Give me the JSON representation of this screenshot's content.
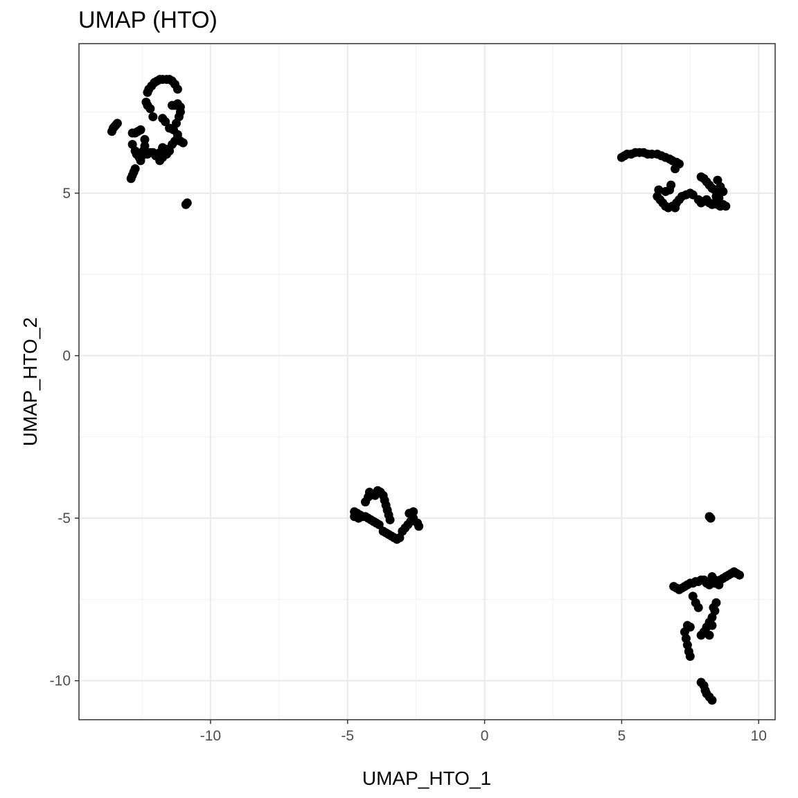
{
  "chart_data": {
    "type": "scatter",
    "title": "UMAP (HTO)",
    "xlabel": "UMAP_HTO_1",
    "ylabel": "UMAP_HTO_2",
    "xlim": [
      -14.8,
      10.6
    ],
    "ylim": [
      -11.2,
      9.6
    ],
    "x_ticks": [
      -10,
      -5,
      0,
      5,
      10
    ],
    "x_tick_labels": [
      "-10",
      "-5",
      "0",
      "5",
      "10"
    ],
    "y_ticks": [
      -10,
      -5,
      0,
      5
    ],
    "y_tick_labels": [
      "-10",
      "-5",
      "0",
      "5"
    ],
    "grid": true,
    "legend": "none",
    "point_color": "#000000",
    "series": [
      {
        "points": [
          [
            -13.6,
            6.9
          ],
          [
            -13.55,
            7.0
          ],
          [
            -13.5,
            7.05
          ],
          [
            -13.45,
            7.1
          ],
          [
            -13.4,
            7.15
          ],
          [
            -12.9,
            5.45
          ],
          [
            -12.85,
            5.55
          ],
          [
            -12.8,
            5.65
          ],
          [
            -12.75,
            5.75
          ],
          [
            -12.85,
            6.85
          ],
          [
            -12.75,
            6.85
          ],
          [
            -12.65,
            6.9
          ],
          [
            -12.55,
            6.95
          ],
          [
            -12.85,
            6.5
          ],
          [
            -12.75,
            6.3
          ],
          [
            -12.7,
            6.2
          ],
          [
            -12.6,
            6.1
          ],
          [
            -12.55,
            6.0
          ],
          [
            -12.5,
            6.15
          ],
          [
            -12.45,
            6.3
          ],
          [
            -12.4,
            6.45
          ],
          [
            -12.4,
            6.65
          ],
          [
            -12.3,
            6.2
          ],
          [
            -12.2,
            6.25
          ],
          [
            -12.1,
            6.25
          ],
          [
            -12.0,
            6.15
          ],
          [
            -11.85,
            6.25
          ],
          [
            -11.75,
            6.4
          ],
          [
            -11.6,
            6.35
          ],
          [
            -11.5,
            6.3
          ],
          [
            -11.4,
            6.5
          ],
          [
            -11.3,
            6.6
          ],
          [
            -11.2,
            6.7
          ],
          [
            -11.1,
            6.6
          ],
          [
            -11.0,
            6.55
          ],
          [
            -11.85,
            6.0
          ],
          [
            -11.75,
            6.1
          ],
          [
            -11.6,
            6.2
          ],
          [
            -12.35,
            7.8
          ],
          [
            -12.3,
            7.7
          ],
          [
            -12.2,
            7.6
          ],
          [
            -12.1,
            7.35
          ],
          [
            -12.3,
            8.1
          ],
          [
            -12.25,
            8.2
          ],
          [
            -12.15,
            8.3
          ],
          [
            -12.05,
            8.4
          ],
          [
            -11.95,
            8.45
          ],
          [
            -11.85,
            8.5
          ],
          [
            -11.75,
            8.5
          ],
          [
            -11.6,
            8.5
          ],
          [
            -11.5,
            8.5
          ],
          [
            -11.4,
            8.45
          ],
          [
            -11.3,
            8.35
          ],
          [
            -11.2,
            8.2
          ],
          [
            -11.4,
            7.7
          ],
          [
            -11.3,
            7.7
          ],
          [
            -11.2,
            7.75
          ],
          [
            -11.1,
            7.65
          ],
          [
            -11.1,
            7.5
          ],
          [
            -11.15,
            7.35
          ],
          [
            -11.25,
            7.15
          ],
          [
            -11.35,
            6.95
          ],
          [
            -11.2,
            6.8
          ],
          [
            -11.75,
            7.3
          ],
          [
            -11.65,
            7.2
          ],
          [
            -11.5,
            7.0
          ],
          [
            -10.9,
            4.65
          ],
          [
            -10.85,
            4.7
          ]
        ]
      },
      {
        "points": [
          [
            5.0,
            6.1
          ],
          [
            5.1,
            6.15
          ],
          [
            5.2,
            6.2
          ],
          [
            5.35,
            6.2
          ],
          [
            5.5,
            6.25
          ],
          [
            5.65,
            6.25
          ],
          [
            5.8,
            6.25
          ],
          [
            5.95,
            6.2
          ],
          [
            6.1,
            6.2
          ],
          [
            6.3,
            6.2
          ],
          [
            6.45,
            6.15
          ],
          [
            6.6,
            6.1
          ],
          [
            6.75,
            6.05
          ],
          [
            6.85,
            6.0
          ],
          [
            7.0,
            5.95
          ],
          [
            7.1,
            5.9
          ],
          [
            6.95,
            5.75
          ],
          [
            6.3,
            4.9
          ],
          [
            6.4,
            4.8
          ],
          [
            6.5,
            4.7
          ],
          [
            6.6,
            4.6
          ],
          [
            6.7,
            4.55
          ],
          [
            6.85,
            4.6
          ],
          [
            7.0,
            4.7
          ],
          [
            7.1,
            4.8
          ],
          [
            7.2,
            4.9
          ],
          [
            7.35,
            4.95
          ],
          [
            7.5,
            5.0
          ],
          [
            7.6,
            4.95
          ],
          [
            6.35,
            5.1
          ],
          [
            6.6,
            5.05
          ],
          [
            6.75,
            5.1
          ],
          [
            6.8,
            5.25
          ],
          [
            6.95,
            4.55
          ],
          [
            7.8,
            4.8
          ],
          [
            7.9,
            4.7
          ],
          [
            8.0,
            4.75
          ],
          [
            8.1,
            4.8
          ],
          [
            8.2,
            4.7
          ],
          [
            8.3,
            4.65
          ],
          [
            8.4,
            4.7
          ],
          [
            8.5,
            4.65
          ],
          [
            8.6,
            4.6
          ],
          [
            8.7,
            4.65
          ],
          [
            8.8,
            4.6
          ],
          [
            7.9,
            5.5
          ],
          [
            8.0,
            5.45
          ],
          [
            8.1,
            5.35
          ],
          [
            8.2,
            5.25
          ],
          [
            8.3,
            5.15
          ],
          [
            8.4,
            5.1
          ],
          [
            8.5,
            5.4
          ],
          [
            8.6,
            5.2
          ],
          [
            8.7,
            5.05
          ],
          [
            8.45,
            4.9
          ],
          [
            8.55,
            4.85
          ]
        ]
      },
      {
        "points": [
          [
            -4.75,
            -4.8
          ],
          [
            -4.65,
            -4.85
          ],
          [
            -4.55,
            -4.9
          ],
          [
            -4.45,
            -4.95
          ],
          [
            -4.35,
            -4.95
          ],
          [
            -4.25,
            -5.0
          ],
          [
            -4.15,
            -5.05
          ],
          [
            -4.05,
            -5.1
          ],
          [
            -3.95,
            -5.15
          ],
          [
            -3.85,
            -5.2
          ],
          [
            -4.75,
            -4.95
          ],
          [
            -4.6,
            -5.0
          ],
          [
            -4.35,
            -4.5
          ],
          [
            -4.25,
            -4.35
          ],
          [
            -4.2,
            -4.2
          ],
          [
            -4.0,
            -4.3
          ],
          [
            -3.9,
            -4.15
          ],
          [
            -3.8,
            -4.2
          ],
          [
            -3.7,
            -4.3
          ],
          [
            -3.65,
            -4.45
          ],
          [
            -3.6,
            -4.6
          ],
          [
            -3.55,
            -4.75
          ],
          [
            -3.5,
            -4.9
          ],
          [
            -3.45,
            -5.05
          ],
          [
            -3.7,
            -5.4
          ],
          [
            -3.6,
            -5.45
          ],
          [
            -3.5,
            -5.5
          ],
          [
            -3.4,
            -5.55
          ],
          [
            -3.3,
            -5.6
          ],
          [
            -3.2,
            -5.65
          ],
          [
            -3.1,
            -5.6
          ],
          [
            -3.0,
            -5.4
          ],
          [
            -2.9,
            -5.3
          ],
          [
            -2.8,
            -5.2
          ],
          [
            -2.7,
            -5.1
          ],
          [
            -2.6,
            -5.0
          ],
          [
            -2.75,
            -4.85
          ],
          [
            -2.6,
            -4.8
          ],
          [
            -2.45,
            -5.15
          ],
          [
            -2.4,
            -5.25
          ]
        ]
      },
      {
        "points": [
          [
            8.2,
            -4.95
          ],
          [
            8.25,
            -5.0
          ],
          [
            6.9,
            -7.1
          ],
          [
            7.0,
            -7.15
          ],
          [
            7.1,
            -7.2
          ],
          [
            7.2,
            -7.15
          ],
          [
            7.3,
            -7.1
          ],
          [
            7.4,
            -7.05
          ],
          [
            7.5,
            -7.0
          ],
          [
            7.6,
            -7.0
          ],
          [
            7.7,
            -6.95
          ],
          [
            7.8,
            -6.95
          ],
          [
            7.9,
            -6.9
          ],
          [
            8.0,
            -6.9
          ],
          [
            8.1,
            -7.0
          ],
          [
            8.2,
            -7.05
          ],
          [
            8.3,
            -6.95
          ],
          [
            8.4,
            -7.0
          ],
          [
            8.5,
            -6.95
          ],
          [
            8.6,
            -6.9
          ],
          [
            8.7,
            -6.85
          ],
          [
            8.8,
            -6.8
          ],
          [
            8.9,
            -6.75
          ],
          [
            9.0,
            -6.7
          ],
          [
            9.1,
            -6.65
          ],
          [
            9.2,
            -6.7
          ],
          [
            9.3,
            -6.75
          ],
          [
            8.3,
            -6.8
          ],
          [
            8.4,
            -6.9
          ],
          [
            8.55,
            -7.05
          ],
          [
            7.6,
            -7.4
          ],
          [
            7.7,
            -7.6
          ],
          [
            7.8,
            -7.75
          ],
          [
            7.3,
            -8.5
          ],
          [
            7.35,
            -8.7
          ],
          [
            7.4,
            -8.9
          ],
          [
            7.45,
            -9.1
          ],
          [
            7.5,
            -9.25
          ],
          [
            7.4,
            -8.3
          ],
          [
            7.5,
            -8.35
          ],
          [
            7.9,
            -8.6
          ],
          [
            8.0,
            -8.5
          ],
          [
            8.1,
            -8.35
          ],
          [
            8.2,
            -8.2
          ],
          [
            8.3,
            -8.05
          ],
          [
            8.3,
            -8.3
          ],
          [
            8.2,
            -8.6
          ],
          [
            8.4,
            -7.85
          ],
          [
            8.45,
            -7.6
          ],
          [
            8.35,
            -7.75
          ],
          [
            7.9,
            -10.05
          ],
          [
            8.0,
            -10.15
          ],
          [
            8.05,
            -10.3
          ],
          [
            8.1,
            -10.4
          ],
          [
            8.2,
            -10.5
          ],
          [
            8.3,
            -10.6
          ]
        ]
      }
    ]
  }
}
